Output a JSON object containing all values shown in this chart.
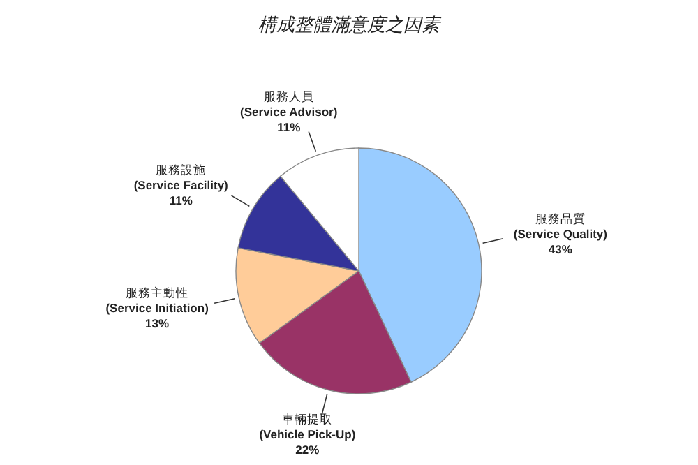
{
  "chart_data": {
    "type": "pie",
    "title": "構成整體滿意度之因素",
    "categories": [
      "服務品質\n(Service Quality)",
      "車輛提取\n(Vehicle Pick-Up)",
      "服務主動性\n(Service Initiation)",
      "服務設施\n(Service Facility)",
      "服務人員\n(Service Advisor)"
    ],
    "values": [
      43,
      22,
      13,
      11,
      11
    ],
    "colors": [
      "#99ccff",
      "#993366",
      "#ffcc99",
      "#333399",
      "#ffffff"
    ],
    "value_labels": [
      "43%",
      "22%",
      "13%",
      "11%",
      "11%"
    ]
  }
}
